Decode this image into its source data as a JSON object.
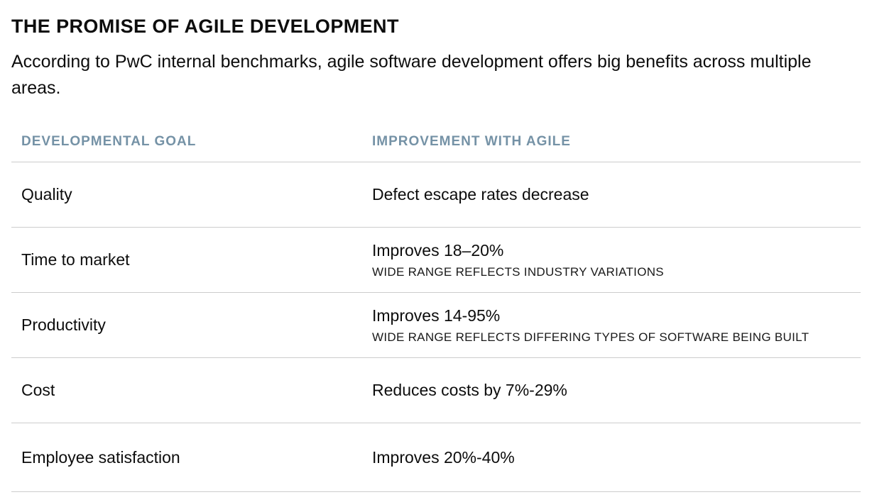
{
  "page": {
    "title": "THE PROMISE OF AGILE DEVELOPMENT",
    "subtitle": "According to PwC internal benchmarks, agile software development offers big benefits across multiple areas."
  },
  "table": {
    "headers": {
      "goal": "DEVELOPMENTAL GOAL",
      "improvement": "IMPROVEMENT WITH AGILE"
    },
    "rows": [
      {
        "goal": "Quality",
        "improvement": "Defect escape rates decrease",
        "note": ""
      },
      {
        "goal": "Time to market",
        "improvement": "Improves 18–20%",
        "note": "WIDE RANGE REFLECTS INDUSTRY VARIATIONS"
      },
      {
        "goal": "Productivity",
        "improvement": "Improves 14-95%",
        "note": "WIDE RANGE REFLECTS DIFFERING TYPES OF SOFTWARE BEING BUILT"
      },
      {
        "goal": "Cost",
        "improvement": "Reduces costs by 7%-29%",
        "note": ""
      },
      {
        "goal": "Employee satisfaction",
        "improvement": "Improves 20%-40%",
        "note": ""
      }
    ]
  },
  "colors": {
    "header_text": "#7592a6",
    "divider": "#cccccc",
    "body_text": "#0d0d0d"
  }
}
